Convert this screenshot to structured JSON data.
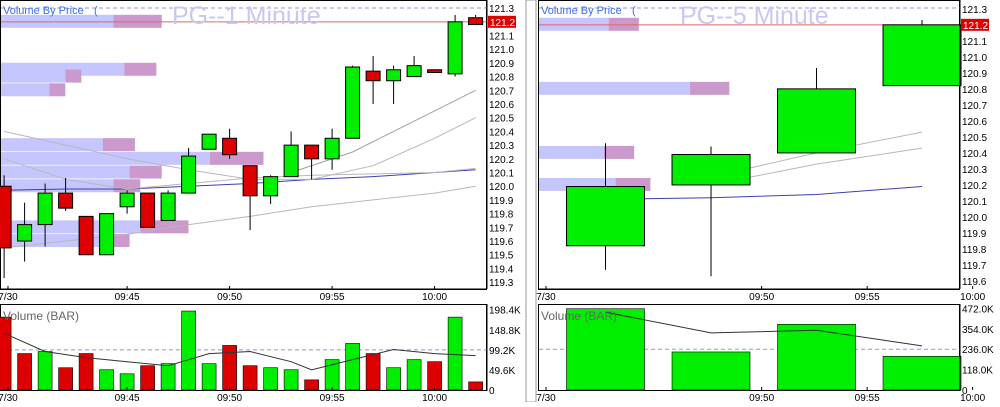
{
  "chart_data": [
    {
      "type": "candlestick",
      "title": "PG--1 Minute",
      "overlay_label": "Volume By Price",
      "ylim": [
        119.25,
        121.33
      ],
      "yticks": [
        121.3,
        121.1,
        121.0,
        120.9,
        120.8,
        120.7,
        120.6,
        120.5,
        120.4,
        120.3,
        120.2,
        120.1,
        120.0,
        119.9,
        119.8,
        119.7,
        119.6,
        119.5,
        119.4,
        119.3
      ],
      "last_price": "121.2",
      "reference_price": 121.2,
      "xticks": [
        {
          "minute": 0,
          "label": "7/30"
        },
        {
          "minute": 6,
          "label": "09:45"
        },
        {
          "minute": 11,
          "label": "09:50"
        },
        {
          "minute": 16,
          "label": "09:55"
        },
        {
          "minute": 21,
          "label": "10:00"
        }
      ],
      "candles": [
        {
          "m": 0,
          "o": 120.0,
          "h": 120.08,
          "l": 119.33,
          "c": 119.55
        },
        {
          "m": 1,
          "o": 119.6,
          "h": 119.88,
          "l": 119.45,
          "c": 119.72
        },
        {
          "m": 2,
          "o": 119.72,
          "h": 120.02,
          "l": 119.56,
          "c": 119.95
        },
        {
          "m": 3,
          "o": 119.95,
          "h": 120.06,
          "l": 119.82,
          "c": 119.84
        },
        {
          "m": 4,
          "o": 119.78,
          "h": 119.78,
          "l": 119.5,
          "c": 119.5
        },
        {
          "m": 5,
          "o": 119.5,
          "h": 119.8,
          "l": 119.5,
          "c": 119.8
        },
        {
          "m": 6,
          "o": 119.85,
          "h": 119.97,
          "l": 119.8,
          "c": 119.95
        },
        {
          "m": 7,
          "o": 119.95,
          "h": 119.95,
          "l": 119.7,
          "c": 119.7
        },
        {
          "m": 8,
          "o": 119.75,
          "h": 119.97,
          "l": 119.75,
          "c": 119.95
        },
        {
          "m": 9,
          "o": 119.95,
          "h": 120.28,
          "l": 119.95,
          "c": 120.22
        },
        {
          "m": 10,
          "o": 120.27,
          "h": 120.38,
          "l": 120.27,
          "c": 120.38
        },
        {
          "m": 11,
          "o": 120.35,
          "h": 120.42,
          "l": 120.2,
          "c": 120.23
        },
        {
          "m": 12,
          "o": 120.15,
          "h": 120.15,
          "l": 119.68,
          "c": 119.93
        },
        {
          "m": 13,
          "o": 119.93,
          "h": 120.08,
          "l": 119.87,
          "c": 120.07
        },
        {
          "m": 14,
          "o": 120.07,
          "h": 120.4,
          "l": 120.07,
          "c": 120.3
        },
        {
          "m": 15,
          "o": 120.3,
          "h": 120.3,
          "l": 120.05,
          "c": 120.2
        },
        {
          "m": 16,
          "o": 120.2,
          "h": 120.42,
          "l": 120.12,
          "c": 120.35
        },
        {
          "m": 17,
          "o": 120.35,
          "h": 120.88,
          "l": 120.35,
          "c": 120.87
        },
        {
          "m": 18,
          "o": 120.84,
          "h": 120.95,
          "l": 120.6,
          "c": 120.77
        },
        {
          "m": 19,
          "o": 120.77,
          "h": 120.88,
          "l": 120.6,
          "c": 120.85
        },
        {
          "m": 20,
          "o": 120.8,
          "h": 120.95,
          "l": 120.8,
          "c": 120.88
        },
        {
          "m": 21,
          "o": 120.85,
          "h": 120.85,
          "l": 120.83,
          "c": 120.83
        },
        {
          "m": 22,
          "o": 120.82,
          "h": 121.25,
          "l": 120.8,
          "c": 121.2
        },
        {
          "m": 23,
          "o": 121.23,
          "h": 121.25,
          "l": 121.18,
          "c": 121.18
        }
      ],
      "moving_averages": [
        {
          "color": "#3f3fae",
          "points": [
            [
              0,
              119.97
            ],
            [
              3,
              119.98
            ],
            [
              6,
              119.98
            ],
            [
              9,
              120.0
            ],
            [
              12,
              120.02
            ],
            [
              15,
              120.05
            ],
            [
              18,
              120.07
            ],
            [
              21,
              120.1
            ],
            [
              23,
              120.12
            ]
          ]
        },
        {
          "color": "#b8b8b8",
          "points": [
            [
              0,
              120.2
            ],
            [
              3,
              120.05
            ],
            [
              6,
              119.98
            ],
            [
              9,
              120.02
            ],
            [
              12,
              120.06
            ],
            [
              15,
              120.08
            ],
            [
              18,
              120.09
            ],
            [
              21,
              120.1
            ],
            [
              23,
              120.13
            ]
          ]
        },
        {
          "color": "#b8b8b8",
          "points": [
            [
              0,
              119.55
            ],
            [
              3,
              119.6
            ],
            [
              6,
              119.65
            ],
            [
              9,
              119.72
            ],
            [
              12,
              119.78
            ],
            [
              15,
              119.85
            ],
            [
              18,
              119.9
            ],
            [
              21,
              119.95
            ],
            [
              23,
              120.0
            ]
          ]
        },
        {
          "color": "#b8b8b8",
          "points": [
            [
              0,
              120.4
            ],
            [
              3,
              120.3
            ],
            [
              6,
              120.2
            ],
            [
              9,
              120.12
            ],
            [
              12,
              120.05
            ],
            [
              15,
              120.05
            ],
            [
              18,
              120.15
            ],
            [
              21,
              120.35
            ],
            [
              23,
              120.5
            ]
          ]
        },
        {
          "color": "#a0a0a0",
          "points": [
            [
              14,
              120.1
            ],
            [
              17,
              120.25
            ],
            [
              19,
              120.4
            ],
            [
              21,
              120.55
            ],
            [
              23,
              120.7
            ]
          ]
        }
      ],
      "volume_by_price": [
        {
          "price": 121.2,
          "up": 0.42,
          "down": 0.18
        },
        {
          "price": 120.85,
          "up": 0.46,
          "down": 0.12
        },
        {
          "price": 120.8,
          "up": 0.24,
          "down": 0.06
        },
        {
          "price": 120.7,
          "up": 0.18,
          "down": 0.06
        },
        {
          "price": 120.3,
          "up": 0.38,
          "down": 0.12
        },
        {
          "price": 120.2,
          "up": 0.78,
          "down": 0.2
        },
        {
          "price": 120.1,
          "up": 0.48,
          "down": 0.12
        },
        {
          "price": 120.0,
          "up": 0.42,
          "down": 0.1
        },
        {
          "price": 119.7,
          "up": 0.52,
          "down": 0.18
        },
        {
          "price": 119.6,
          "up": 0.38,
          "down": 0.1
        }
      ]
    },
    {
      "type": "bar",
      "title": "Volume (BAR)",
      "ylim": [
        0,
        205000
      ],
      "yticks": [
        {
          "value": 198400,
          "label": "198.4K"
        },
        {
          "value": 148800,
          "label": "148.8K"
        },
        {
          "value": 99200,
          "label": "99.2K"
        },
        {
          "value": 49600,
          "label": "49.6K"
        },
        {
          "value": 0,
          "label": "0"
        }
      ],
      "reference_line": 99200,
      "bars": [
        {
          "m": 0,
          "v": 180000,
          "dir": "down"
        },
        {
          "m": 1,
          "v": 90000,
          "dir": "down"
        },
        {
          "m": 2,
          "v": 95000,
          "dir": "up"
        },
        {
          "m": 3,
          "v": 55000,
          "dir": "down"
        },
        {
          "m": 4,
          "v": 90000,
          "dir": "down"
        },
        {
          "m": 5,
          "v": 50000,
          "dir": "up"
        },
        {
          "m": 6,
          "v": 40000,
          "dir": "up"
        },
        {
          "m": 7,
          "v": 60000,
          "dir": "down"
        },
        {
          "m": 8,
          "v": 65000,
          "dir": "up"
        },
        {
          "m": 9,
          "v": 195000,
          "dir": "up"
        },
        {
          "m": 10,
          "v": 65000,
          "dir": "up"
        },
        {
          "m": 11,
          "v": 110000,
          "dir": "down"
        },
        {
          "m": 12,
          "v": 60000,
          "dir": "down"
        },
        {
          "m": 13,
          "v": 55000,
          "dir": "up"
        },
        {
          "m": 14,
          "v": 50000,
          "dir": "up"
        },
        {
          "m": 15,
          "v": 25000,
          "dir": "down"
        },
        {
          "m": 16,
          "v": 75000,
          "dir": "up"
        },
        {
          "m": 17,
          "v": 115000,
          "dir": "up"
        },
        {
          "m": 18,
          "v": 90000,
          "dir": "down"
        },
        {
          "m": 19,
          "v": 55000,
          "dir": "up"
        },
        {
          "m": 20,
          "v": 75000,
          "dir": "up"
        },
        {
          "m": 21,
          "v": 70000,
          "dir": "down"
        },
        {
          "m": 22,
          "v": 180000,
          "dir": "up"
        },
        {
          "m": 23,
          "v": 20000,
          "dir": "down"
        }
      ],
      "average_line": [
        [
          0,
          140000
        ],
        [
          2,
          95000
        ],
        [
          4,
          80000
        ],
        [
          6,
          70000
        ],
        [
          8,
          60000
        ],
        [
          10,
          90000
        ],
        [
          12,
          95000
        ],
        [
          14,
          70000
        ],
        [
          15,
          50000
        ],
        [
          17,
          75000
        ],
        [
          19,
          100000
        ],
        [
          21,
          90000
        ],
        [
          23,
          85000
        ]
      ]
    },
    {
      "type": "candlestick",
      "title": "PG--5 Minute",
      "overlay_label": "Volume By Price",
      "ylim": [
        119.55,
        121.33
      ],
      "yticks": [
        121.3,
        121.2,
        121.1,
        121.0,
        120.9,
        120.8,
        120.7,
        120.6,
        120.5,
        120.4,
        120.3,
        120.2,
        120.1,
        120.0,
        119.9,
        119.8,
        119.7,
        119.6
      ],
      "last_price": "121.2",
      "reference_price": 121.2,
      "xticks": [
        {
          "minute": 0,
          "label": "7/30"
        },
        {
          "minute": 10,
          "label": "09:50"
        },
        {
          "minute": 15,
          "label": "09:55"
        },
        {
          "minute": 20,
          "label": "10:00"
        }
      ],
      "candles": [
        {
          "m": 2.6,
          "o": 119.82,
          "h": 120.46,
          "l": 119.67,
          "c": 120.19
        },
        {
          "m": 7.6,
          "o": 120.2,
          "h": 120.44,
          "l": 119.63,
          "c": 120.39
        },
        {
          "m": 12.6,
          "o": 120.4,
          "h": 120.93,
          "l": 120.4,
          "c": 120.8
        },
        {
          "m": 17.6,
          "o": 120.82,
          "h": 121.23,
          "l": 120.82,
          "c": 121.2
        }
      ],
      "moving_averages": [
        {
          "color": "#3f3fae",
          "points": [
            [
              2.6,
              120.11
            ],
            [
              7.6,
              120.12
            ],
            [
              12.6,
              120.14
            ],
            [
              17.6,
              120.19
            ]
          ]
        },
        {
          "color": "#b8b8b8",
          "points": [
            [
              7.6,
              120.2
            ],
            [
              12.6,
              120.33
            ],
            [
              17.6,
              120.43
            ]
          ]
        },
        {
          "color": "#b8b8b8",
          "points": [
            [
              7.6,
              120.25
            ],
            [
              12.6,
              120.4
            ],
            [
              17.6,
              120.53
            ]
          ]
        }
      ],
      "volume_by_price": [
        {
          "price": 121.2,
          "up": 0.3,
          "down": 0.13
        },
        {
          "price": 120.8,
          "up": 0.65,
          "down": 0.17
        },
        {
          "price": 120.4,
          "up": 0.28,
          "down": 0.13
        },
        {
          "price": 120.2,
          "up": 0.33,
          "down": 0.15
        }
      ]
    },
    {
      "type": "bar",
      "title": "Volume (BAR)",
      "ylim": [
        0,
        480000
      ],
      "yticks": [
        {
          "value": 472000,
          "label": "472.0K"
        },
        {
          "value": 354000,
          "label": "354.0K"
        },
        {
          "value": 236000,
          "label": "236.0K"
        },
        {
          "value": 118000,
          "label": "118.0K"
        },
        {
          "value": 0,
          "label": "0"
        }
      ],
      "reference_line": 236000,
      "bars": [
        {
          "m": 2.6,
          "v": 470000,
          "dir": "up"
        },
        {
          "m": 7.6,
          "v": 220000,
          "dir": "up"
        },
        {
          "m": 12.6,
          "v": 380000,
          "dir": "up"
        },
        {
          "m": 17.6,
          "v": 195000,
          "dir": "up"
        }
      ],
      "average_line": [
        [
          2.6,
          450000
        ],
        [
          7.6,
          330000
        ],
        [
          12.6,
          345000
        ],
        [
          17.6,
          255000
        ]
      ]
    }
  ],
  "colors": {
    "up": "#00ee00",
    "down": "#dd0000",
    "vbp_up": "#c6c6ff",
    "vbp_down": "#cc99cc",
    "ref_line": "#e06666",
    "grid_dash": "#9f8fd6",
    "title": "#c8c8f0",
    "label_blue": "#3a6ff0"
  }
}
